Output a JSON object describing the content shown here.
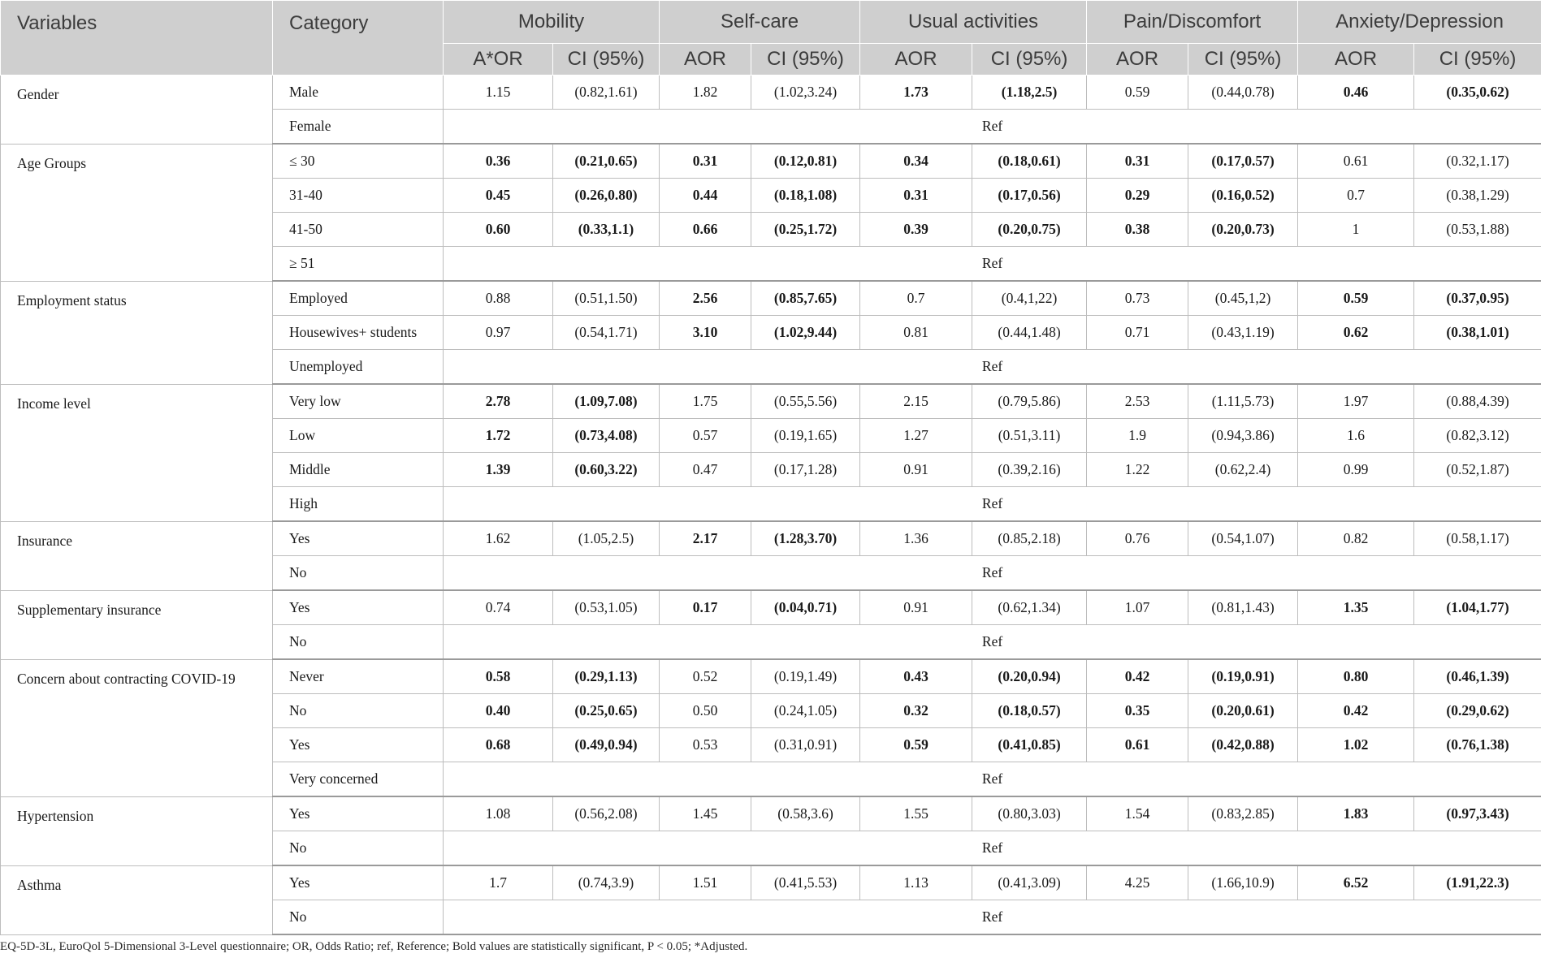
{
  "header": {
    "variables": "Variables",
    "category": "Category",
    "groups": [
      "Mobility",
      "Self-care",
      "Usual activities",
      "Pain/Discomfort",
      "Anxiety/Depression"
    ],
    "subheaders": [
      "A*OR",
      "CI (95%)",
      "AOR",
      "CI (95%)",
      "AOR",
      "CI (95%)",
      "AOR",
      "CI (95%)",
      "AOR",
      "CI (95%)"
    ]
  },
  "groups": [
    {
      "variable": "Gender",
      "rows": [
        {
          "category": "Male",
          "cells": [
            {
              "v": "1.15",
              "b": false
            },
            {
              "v": "(0.82,1.61)",
              "b": false
            },
            {
              "v": "1.82",
              "b": false
            },
            {
              "v": "(1.02,3.24)",
              "b": false
            },
            {
              "v": "1.73",
              "b": true
            },
            {
              "v": "(1.18,2.5)",
              "b": true
            },
            {
              "v": "0.59",
              "b": false
            },
            {
              "v": "(0.44,0.78)",
              "b": false
            },
            {
              "v": "0.46",
              "b": true
            },
            {
              "v": "(0.35,0.62)",
              "b": true
            }
          ]
        },
        {
          "category": "Female",
          "ref": "Ref"
        }
      ]
    },
    {
      "variable": "Age Groups",
      "rows": [
        {
          "category": "≤ 30",
          "cells": [
            {
              "v": "0.36",
              "b": true
            },
            {
              "v": "(0.21,0.65)",
              "b": true
            },
            {
              "v": "0.31",
              "b": true
            },
            {
              "v": "(0.12,0.81)",
              "b": true
            },
            {
              "v": "0.34",
              "b": true
            },
            {
              "v": "(0.18,0.61)",
              "b": true
            },
            {
              "v": "0.31",
              "b": true
            },
            {
              "v": "(0.17,0.57)",
              "b": true
            },
            {
              "v": "0.61",
              "b": false
            },
            {
              "v": "(0.32,1.17)",
              "b": false
            }
          ]
        },
        {
          "category": "31-40",
          "cells": [
            {
              "v": "0.45",
              "b": true
            },
            {
              "v": "(0.26,0.80)",
              "b": true
            },
            {
              "v": "0.44",
              "b": true
            },
            {
              "v": "(0.18,1.08)",
              "b": true
            },
            {
              "v": "0.31",
              "b": true
            },
            {
              "v": "(0.17,0.56)",
              "b": true
            },
            {
              "v": "0.29",
              "b": true
            },
            {
              "v": "(0.16,0.52)",
              "b": true
            },
            {
              "v": "0.7",
              "b": false
            },
            {
              "v": "(0.38,1.29)",
              "b": false
            }
          ]
        },
        {
          "category": "41-50",
          "cells": [
            {
              "v": "0.60",
              "b": true
            },
            {
              "v": "(0.33,1.1)",
              "b": true
            },
            {
              "v": "0.66",
              "b": true
            },
            {
              "v": "(0.25,1.72)",
              "b": true
            },
            {
              "v": "0.39",
              "b": true
            },
            {
              "v": "(0.20,0.75)",
              "b": true
            },
            {
              "v": "0.38",
              "b": true
            },
            {
              "v": "(0.20,0.73)",
              "b": true
            },
            {
              "v": "1",
              "b": false
            },
            {
              "v": "(0.53,1.88)",
              "b": false
            }
          ]
        },
        {
          "category": "≥ 51",
          "ref": "Ref"
        }
      ]
    },
    {
      "variable": "Employment status",
      "rows": [
        {
          "category": "Employed",
          "cells": [
            {
              "v": "0.88",
              "b": false
            },
            {
              "v": "(0.51,1.50)",
              "b": false
            },
            {
              "v": "2.56",
              "b": true
            },
            {
              "v": "(0.85,7.65)",
              "b": true
            },
            {
              "v": "0.7",
              "b": false
            },
            {
              "v": "(0.4,1,22)",
              "b": false
            },
            {
              "v": "0.73",
              "b": false
            },
            {
              "v": "(0.45,1,2)",
              "b": false
            },
            {
              "v": "0.59",
              "b": true
            },
            {
              "v": "(0.37,0.95)",
              "b": true
            }
          ]
        },
        {
          "category": "Housewives+ students",
          "cells": [
            {
              "v": "0.97",
              "b": false
            },
            {
              "v": "(0.54,1.71)",
              "b": false
            },
            {
              "v": "3.10",
              "b": true
            },
            {
              "v": "(1.02,9.44)",
              "b": true
            },
            {
              "v": "0.81",
              "b": false
            },
            {
              "v": "(0.44,1.48)",
              "b": false
            },
            {
              "v": "0.71",
              "b": false
            },
            {
              "v": "(0.43,1.19)",
              "b": false
            },
            {
              "v": "0.62",
              "b": true
            },
            {
              "v": "(0.38,1.01)",
              "b": true
            }
          ]
        },
        {
          "category": "Unemployed",
          "ref": "Ref"
        }
      ]
    },
    {
      "variable": "Income level",
      "rows": [
        {
          "category": "Very low",
          "cells": [
            {
              "v": "2.78",
              "b": true
            },
            {
              "v": "(1.09,7.08)",
              "b": true
            },
            {
              "v": "1.75",
              "b": false
            },
            {
              "v": "(0.55,5.56)",
              "b": false
            },
            {
              "v": "2.15",
              "b": false
            },
            {
              "v": "(0.79,5.86)",
              "b": false
            },
            {
              "v": "2.53",
              "b": false
            },
            {
              "v": "(1.11,5.73)",
              "b": false
            },
            {
              "v": "1.97",
              "b": false
            },
            {
              "v": "(0.88,4.39)",
              "b": false
            }
          ]
        },
        {
          "category": "Low",
          "cells": [
            {
              "v": "1.72",
              "b": true
            },
            {
              "v": "(0.73,4.08)",
              "b": true
            },
            {
              "v": "0.57",
              "b": false
            },
            {
              "v": "(0.19,1.65)",
              "b": false
            },
            {
              "v": "1.27",
              "b": false
            },
            {
              "v": "(0.51,3.11)",
              "b": false
            },
            {
              "v": "1.9",
              "b": false
            },
            {
              "v": "(0.94,3.86)",
              "b": false
            },
            {
              "v": "1.6",
              "b": false
            },
            {
              "v": "(0.82,3.12)",
              "b": false
            }
          ]
        },
        {
          "category": "Middle",
          "cells": [
            {
              "v": "1.39",
              "b": true
            },
            {
              "v": "(0.60,3.22)",
              "b": true
            },
            {
              "v": "0.47",
              "b": false
            },
            {
              "v": "(0.17,1.28)",
              "b": false
            },
            {
              "v": "0.91",
              "b": false
            },
            {
              "v": "(0.39,2.16)",
              "b": false
            },
            {
              "v": "1.22",
              "b": false
            },
            {
              "v": "(0.62,2.4)",
              "b": false
            },
            {
              "v": "0.99",
              "b": false
            },
            {
              "v": "(0.52,1.87)",
              "b": false
            }
          ]
        },
        {
          "category": "High",
          "ref": "Ref"
        }
      ]
    },
    {
      "variable": "Insurance",
      "rows": [
        {
          "category": "Yes",
          "cells": [
            {
              "v": "1.62",
              "b": false
            },
            {
              "v": "(1.05,2.5)",
              "b": false
            },
            {
              "v": "2.17",
              "b": true
            },
            {
              "v": "(1.28,3.70)",
              "b": true
            },
            {
              "v": "1.36",
              "b": false
            },
            {
              "v": "(0.85,2.18)",
              "b": false
            },
            {
              "v": "0.76",
              "b": false
            },
            {
              "v": "(0.54,1.07)",
              "b": false
            },
            {
              "v": "0.82",
              "b": false
            },
            {
              "v": "(0.58,1.17)",
              "b": false
            }
          ]
        },
        {
          "category": "No",
          "ref": "Ref"
        }
      ]
    },
    {
      "variable": "Supplementary insurance",
      "rows": [
        {
          "category": "Yes",
          "cells": [
            {
              "v": "0.74",
              "b": false
            },
            {
              "v": "(0.53,1.05)",
              "b": false
            },
            {
              "v": "0.17",
              "b": true
            },
            {
              "v": "(0.04,0.71)",
              "b": true
            },
            {
              "v": "0.91",
              "b": false
            },
            {
              "v": "(0.62,1.34)",
              "b": false
            },
            {
              "v": "1.07",
              "b": false
            },
            {
              "v": "(0.81,1.43)",
              "b": false
            },
            {
              "v": "1.35",
              "b": true
            },
            {
              "v": "(1.04,1.77)",
              "b": true
            }
          ]
        },
        {
          "category": "No",
          "ref": "Ref"
        }
      ]
    },
    {
      "variable": "Concern about contracting COVID-19",
      "rows": [
        {
          "category": "Never",
          "cells": [
            {
              "v": "0.58",
              "b": true
            },
            {
              "v": "(0.29,1.13)",
              "b": true
            },
            {
              "v": "0.52",
              "b": false
            },
            {
              "v": "(0.19,1.49)",
              "b": false
            },
            {
              "v": "0.43",
              "b": true
            },
            {
              "v": "(0.20,0.94)",
              "b": true
            },
            {
              "v": "0.42",
              "b": true
            },
            {
              "v": "(0.19,0.91)",
              "b": true
            },
            {
              "v": "0.80",
              "b": true
            },
            {
              "v": "(0.46,1.39)",
              "b": true
            }
          ]
        },
        {
          "category": "No",
          "cells": [
            {
              "v": "0.40",
              "b": true
            },
            {
              "v": "(0.25,0.65)",
              "b": true
            },
            {
              "v": "0.50",
              "b": false
            },
            {
              "v": "(0.24,1.05)",
              "b": false
            },
            {
              "v": "0.32",
              "b": true
            },
            {
              "v": "(0.18,0.57)",
              "b": true
            },
            {
              "v": "0.35",
              "b": true
            },
            {
              "v": "(0.20,0.61)",
              "b": true
            },
            {
              "v": "0.42",
              "b": true
            },
            {
              "v": "(0.29,0.62)",
              "b": true
            }
          ]
        },
        {
          "category": "Yes",
          "cells": [
            {
              "v": "0.68",
              "b": true
            },
            {
              "v": "(0.49,0.94)",
              "b": true
            },
            {
              "v": "0.53",
              "b": false
            },
            {
              "v": "(0.31,0.91)",
              "b": false
            },
            {
              "v": "0.59",
              "b": true
            },
            {
              "v": "(0.41,0.85)",
              "b": true
            },
            {
              "v": "0.61",
              "b": true
            },
            {
              "v": "(0.42,0.88)",
              "b": true
            },
            {
              "v": "1.02",
              "b": true
            },
            {
              "v": "(0.76,1.38)",
              "b": true
            }
          ]
        },
        {
          "category": "Very concerned",
          "ref": "Ref"
        }
      ]
    },
    {
      "variable": "Hypertension",
      "rows": [
        {
          "category": "Yes",
          "cells": [
            {
              "v": "1.08",
              "b": false
            },
            {
              "v": "(0.56,2.08)",
              "b": false
            },
            {
              "v": "1.45",
              "b": false
            },
            {
              "v": "(0.58,3.6)",
              "b": false
            },
            {
              "v": "1.55",
              "b": false
            },
            {
              "v": "(0.80,3.03)",
              "b": false
            },
            {
              "v": "1.54",
              "b": false
            },
            {
              "v": "(0.83,2.85)",
              "b": false
            },
            {
              "v": "1.83",
              "b": true
            },
            {
              "v": "(0.97,3.43)",
              "b": true
            }
          ]
        },
        {
          "category": "No",
          "ref": "Ref"
        }
      ]
    },
    {
      "variable": "Asthma",
      "rows": [
        {
          "category": "Yes",
          "cells": [
            {
              "v": "1.7",
              "b": false
            },
            {
              "v": "(0.74,3.9)",
              "b": false
            },
            {
              "v": "1.51",
              "b": false
            },
            {
              "v": "(0.41,5.53)",
              "b": false
            },
            {
              "v": "1.13",
              "b": false
            },
            {
              "v": "(0.41,3.09)",
              "b": false
            },
            {
              "v": "4.25",
              "b": false
            },
            {
              "v": "(1.66,10.9)",
              "b": false
            },
            {
              "v": "6.52",
              "b": true
            },
            {
              "v": "(1.91,22.3)",
              "b": true
            }
          ]
        },
        {
          "category": "No",
          "ref": "Ref"
        }
      ]
    }
  ],
  "footnote": "EQ-5D-3L, EuroQol 5-Dimensional 3-Level questionnaire; OR, Odds Ratio; ref, Reference; Bold values are statistically significant, P < 0.05; *Adjusted."
}
